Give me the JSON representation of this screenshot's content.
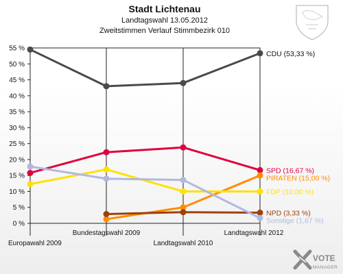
{
  "chart_data": {
    "type": "line",
    "title": "Stadt Lichtenau",
    "subtitle_1": "Landtagswahl 13.05.2012",
    "subtitle_2": "Zweitstimmen Verlauf Stimmbezirk 010",
    "categories": [
      "Europawahl 2009",
      "Bundestagswahl 2009",
      "Landtagswahl 2010",
      "Landtagswahl 2012"
    ],
    "ylim": [
      0,
      55
    ],
    "yticks": [
      0,
      5,
      10,
      15,
      20,
      25,
      30,
      35,
      40,
      45,
      50,
      55
    ],
    "ytick_labels": [
      "0 %",
      "5 %",
      "10 %",
      "15 %",
      "20 %",
      "25 %",
      "30 %",
      "35 %",
      "40 %",
      "45 %",
      "50 %",
      "55 %"
    ],
    "grid": false,
    "series": [
      {
        "name": "CDU",
        "label": "CDU (53,33 %)",
        "color": "#4a4a4a",
        "values": [
          54.5,
          43.0,
          44.0,
          53.33
        ]
      },
      {
        "name": "SPD",
        "label": "SPD (16,67 %)",
        "color": "#e0003c",
        "values": [
          15.8,
          22.3,
          23.8,
          16.67
        ]
      },
      {
        "name": "PIRATEN",
        "label": "PIRATEN (15,00 %)",
        "color": "#ff8c00",
        "values": [
          null,
          1.3,
          5.0,
          15.0
        ]
      },
      {
        "name": "FDP",
        "label": "FDP (10,00 %)",
        "color": "#ffe100",
        "values": [
          12.3,
          16.9,
          10.0,
          10.0
        ]
      },
      {
        "name": "NPD",
        "label": "NPD (3,33 %)",
        "color": "#a0400a",
        "values": [
          null,
          2.9,
          3.5,
          3.33
        ]
      },
      {
        "name": "Sonstige",
        "label": "Sonstige (1,67 %)",
        "color": "#b0b8e0",
        "values": [
          17.8,
          14.0,
          13.6,
          1.67
        ]
      }
    ]
  },
  "branding": {
    "vote_text": "VOTE",
    "manager_text": "MANAGER",
    "logo_color": "#888888"
  },
  "coat_of_arms": {
    "icon": "coat-of-arms-icon"
  }
}
